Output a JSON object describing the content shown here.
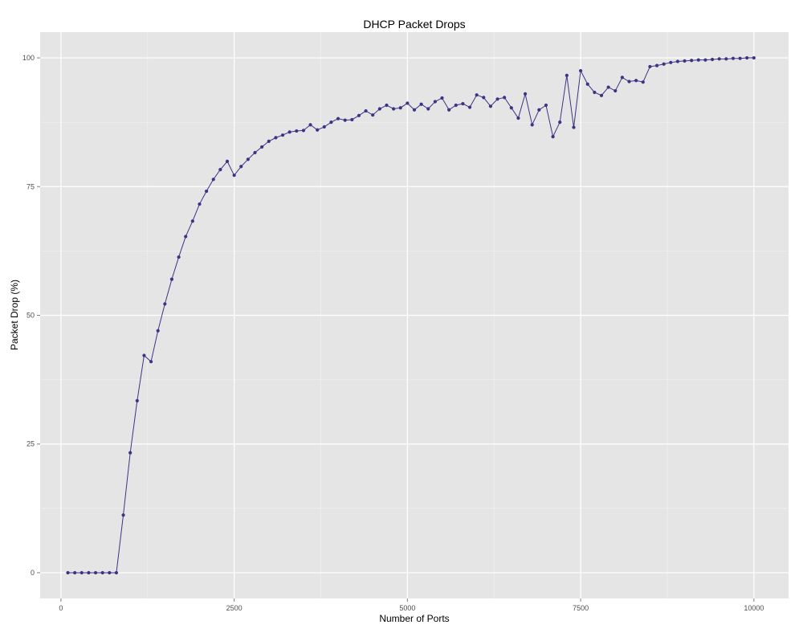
{
  "chart_data": {
    "type": "line",
    "title": "DHCP Packet Drops",
    "xlabel": "Number of Ports",
    "ylabel": "Packet Drop (%)",
    "xlim": [
      -300,
      10500
    ],
    "ylim": [
      -5,
      105
    ],
    "x_ticks": [
      0,
      2500,
      5000,
      7500,
      10000
    ],
    "x_tick_labels": [
      "0",
      "2500",
      "5000",
      "7500",
      "10000"
    ],
    "y_ticks": [
      0,
      25,
      50,
      75,
      100
    ],
    "y_tick_labels": [
      "0",
      "25",
      "50",
      "75",
      "100"
    ],
    "grid": true,
    "background": "#e5e5e5",
    "series": [
      {
        "color": "#3b3484",
        "x": [
          100,
          200,
          300,
          400,
          500,
          600,
          700,
          800,
          900,
          1000,
          1100,
          1200,
          1300,
          1400,
          1500,
          1600,
          1700,
          1800,
          1900,
          2000,
          2100,
          2200,
          2300,
          2400,
          2500,
          2600,
          2700,
          2800,
          2900,
          3000,
          3100,
          3200,
          3300,
          3400,
          3500,
          3600,
          3700,
          3800,
          3900,
          4000,
          4100,
          4200,
          4300,
          4400,
          4500,
          4600,
          4700,
          4800,
          4900,
          5000,
          5100,
          5200,
          5300,
          5400,
          5500,
          5600,
          5700,
          5800,
          5900,
          6000,
          6100,
          6200,
          6300,
          6400,
          6500,
          6600,
          6700,
          6800,
          6900,
          7000,
          7100,
          7200,
          7300,
          7400,
          7500,
          7600,
          7700,
          7800,
          7900,
          8000,
          8100,
          8200,
          8300,
          8400,
          8500,
          8600,
          8700,
          8800,
          8900,
          9000,
          9100,
          9200,
          9300,
          9400,
          9500,
          9600,
          9700,
          9800,
          9900,
          10000
        ],
        "y": [
          0,
          0,
          0,
          0,
          0,
          0,
          0,
          0,
          11.2,
          23.3,
          33.4,
          42.2,
          41.0,
          47.0,
          52.2,
          57.0,
          61.3,
          65.3,
          68.3,
          71.6,
          74.1,
          76.4,
          78.3,
          79.9,
          77.2,
          78.9,
          80.3,
          81.6,
          82.7,
          83.8,
          84.5,
          85.0,
          85.6,
          85.8,
          85.9,
          87.0,
          86.0,
          86.6,
          87.5,
          88.2,
          87.9,
          88.0,
          88.8,
          89.7,
          88.9,
          90.1,
          90.8,
          90.1,
          90.3,
          91.2,
          89.9,
          91.0,
          90.1,
          91.5,
          92.2,
          89.9,
          90.8,
          91.1,
          90.4,
          92.8,
          92.3,
          90.6,
          92.0,
          92.3,
          90.3,
          88.3,
          93.0,
          87.0,
          89.9,
          90.8,
          84.7,
          87.5,
          96.6,
          86.5,
          97.5,
          94.9,
          93.3,
          92.7,
          94.3,
          93.6,
          96.2,
          95.4,
          95.6,
          95.3,
          98.3,
          98.5,
          98.8,
          99.1,
          99.3,
          99.4,
          99.5,
          99.6,
          99.6,
          99.7,
          99.8,
          99.8,
          99.9,
          99.9,
          100,
          100
        ]
      }
    ]
  }
}
